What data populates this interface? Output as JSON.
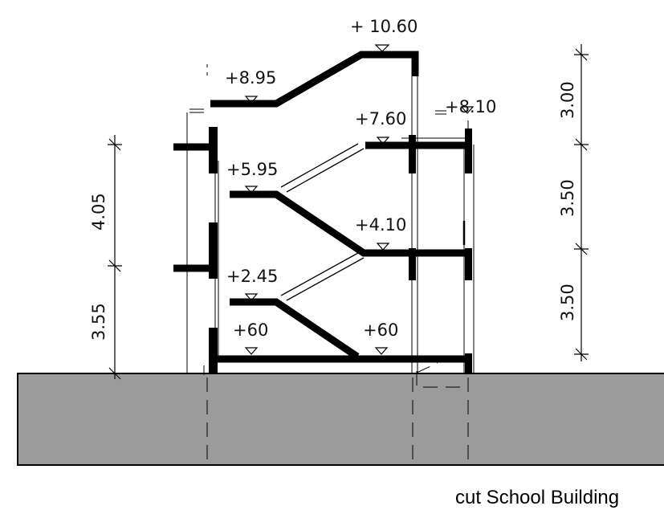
{
  "levels": {
    "top": "+ 10.60",
    "roof_left": "+8.95",
    "roof_right": "+8.10",
    "upper_right": "+7.60",
    "upper_left": "+5.95",
    "mid_right": "+4.10",
    "low_left": "+2.45",
    "ground_left": "+60",
    "ground_right": "+60"
  },
  "dimensions_left": [
    "4.05",
    "3.55"
  ],
  "dimensions_right": [
    "3.00",
    "3.50",
    "3.50"
  ],
  "caption": "cut School Building",
  "colors": {
    "ground": "#9b9b9b",
    "structure": "#000000"
  }
}
